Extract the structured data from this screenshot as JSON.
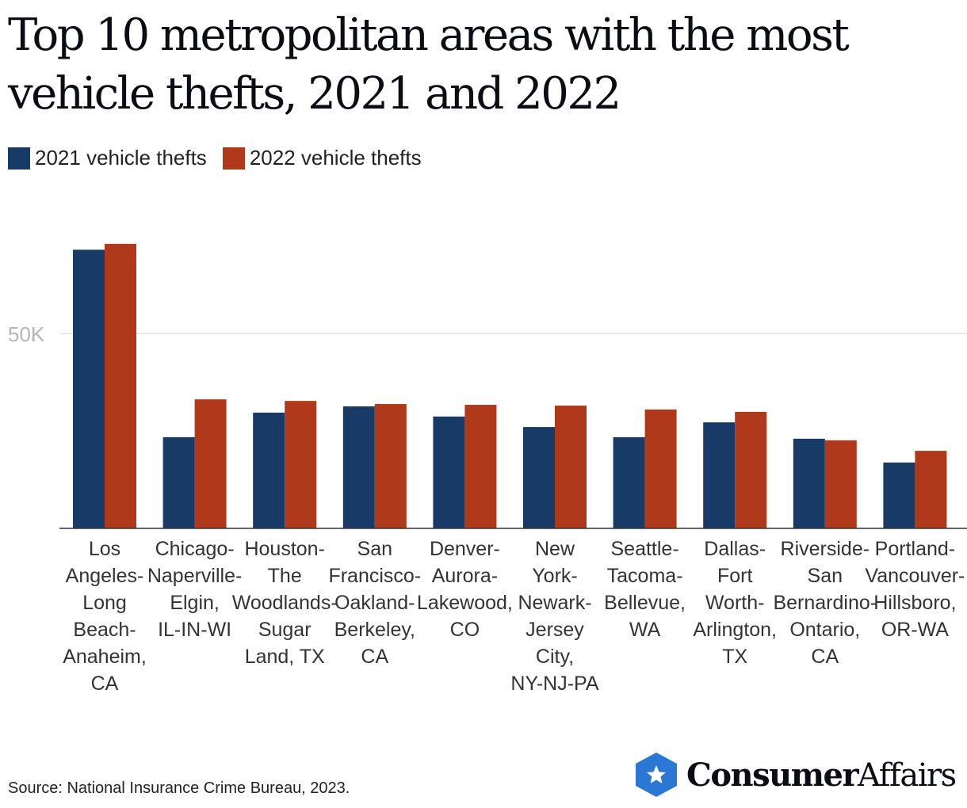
{
  "chart_data": {
    "type": "bar",
    "title": "Top 10 metropolitan areas with the most vehicle thefts, 2021 and 2022",
    "categories": [
      "Los Angeles-Long Beach-Anaheim, CA",
      "Chicago-Naperville-Elgin, IL-IN-WI",
      "Houston-The Woodlands-Sugar Land, TX",
      "San Francisco-Oakland-Berkeley, CA",
      "Denver-Aurora-Lakewood, CO",
      "New York-Newark-Jersey City, NY-NJ-PA",
      "Seattle-Tacoma-Bellevue, WA",
      "Dallas-Fort Worth-Arlington, TX",
      "Riverside-San Bernardino-Ontario, CA",
      "Portland-Vancouver-Hillsboro, OR-WA"
    ],
    "series": [
      {
        "name": "2021 vehicle thefts",
        "color": "#173a66",
        "values": [
          71500,
          23400,
          29700,
          31300,
          28700,
          26000,
          23400,
          27200,
          23000,
          16900
        ]
      },
      {
        "name": "2022 vehicle thefts",
        "color": "#b0391b",
        "values": [
          73000,
          33100,
          32700,
          31900,
          31700,
          31500,
          30500,
          29900,
          22600,
          19900
        ]
      }
    ],
    "yticks": [
      {
        "value": 50000,
        "label": "50K"
      }
    ],
    "ylim": [
      0,
      80000
    ],
    "grid": true,
    "legend": "top-left",
    "xlabel": "",
    "ylabel": ""
  },
  "source": "Source: National Insurance Crime Bureau, 2023.",
  "logo": {
    "bold": "Consumer",
    "light": "Affairs",
    "color": "#2a78d4"
  }
}
